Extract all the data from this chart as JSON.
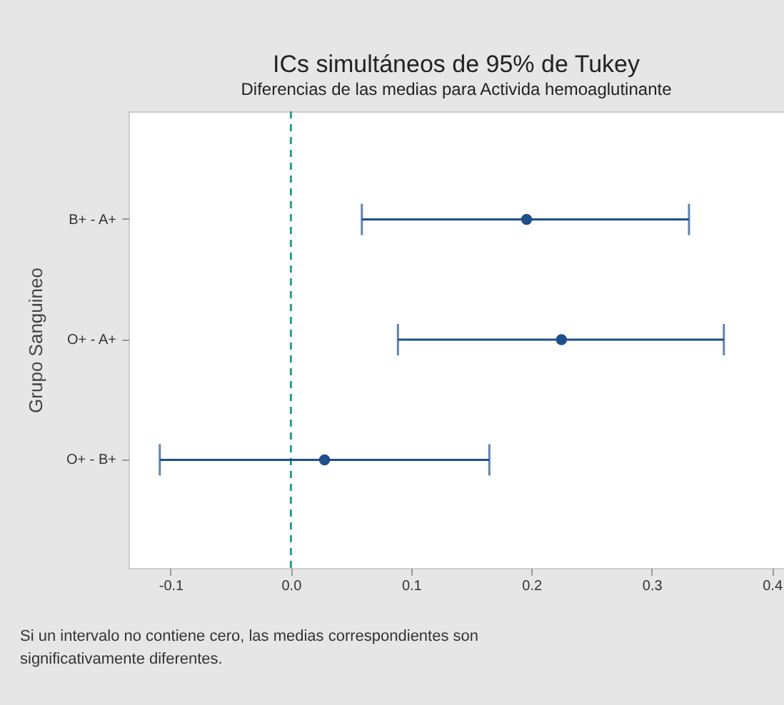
{
  "chart_data": {
    "type": "scatter",
    "orientation": "horizontal",
    "title": "ICs simultáneos de 95% de Tukey",
    "subtitle": "Diferencias de las medias para Activida hemoaglutinante",
    "ylabel": "Grupo Sanguineo",
    "categories": [
      "B+ - A+",
      "O+ - A+",
      "O+ - B+"
    ],
    "series": [
      {
        "color": "#1f4e8c",
        "values": [
          0.196,
          0.225,
          0.028
        ],
        "errors": [
          [
            0.059,
            0.331
          ],
          [
            0.089,
            0.36
          ],
          [
            -0.109,
            0.165
          ]
        ]
      }
    ],
    "xlim": [
      -0.135,
      0.41
    ],
    "xticks": [
      {
        "value": -0.1,
        "label": "-0.1"
      },
      {
        "value": 0,
        "label": "0.0"
      },
      {
        "value": 0.1,
        "label": "0.1"
      },
      {
        "value": 0.2,
        "label": "0.2"
      },
      {
        "value": 0.3,
        "label": "0.3"
      },
      {
        "value": 0.4,
        "label": "0.4"
      }
    ],
    "ref_lines": [
      {
        "axis": "x",
        "value": 0,
        "color": "#2a9d8f",
        "line_style": "dashed"
      }
    ],
    "marker": "circle",
    "grid": false,
    "annotations": [
      "Si un intervalo no contiene cero, las medias correspondientes son significativamente diferentes."
    ]
  }
}
